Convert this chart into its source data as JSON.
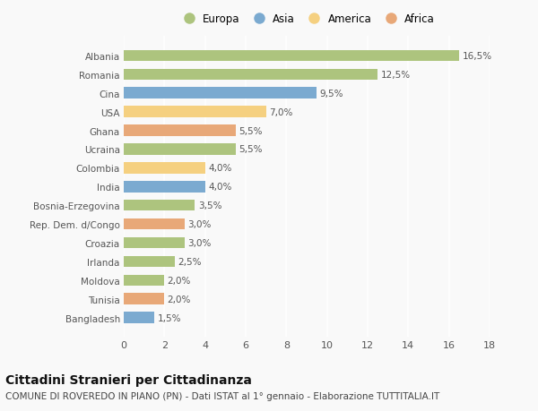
{
  "countries": [
    "Albania",
    "Romania",
    "Cina",
    "USA",
    "Ghana",
    "Ucraina",
    "Colombia",
    "India",
    "Bosnia-Erzegovina",
    "Rep. Dem. d/Congo",
    "Croazia",
    "Irlanda",
    "Moldova",
    "Tunisia",
    "Bangladesh"
  ],
  "values": [
    16.5,
    12.5,
    9.5,
    7.0,
    5.5,
    5.5,
    4.0,
    4.0,
    3.5,
    3.0,
    3.0,
    2.5,
    2.0,
    2.0,
    1.5
  ],
  "continents": [
    "Europa",
    "Europa",
    "Asia",
    "America",
    "Africa",
    "Europa",
    "America",
    "Asia",
    "Europa",
    "Africa",
    "Europa",
    "Europa",
    "Europa",
    "Africa",
    "Asia"
  ],
  "continent_colors": {
    "Europa": "#adc47e",
    "Asia": "#7baad0",
    "America": "#f5d080",
    "Africa": "#e8a878"
  },
  "legend_order": [
    "Europa",
    "Asia",
    "America",
    "Africa"
  ],
  "title": "Cittadini Stranieri per Cittadinanza",
  "subtitle": "COMUNE DI ROVEREDO IN PIANO (PN) - Dati ISTAT al 1° gennaio - Elaborazione TUTTITALIA.IT",
  "xlim": [
    0,
    18
  ],
  "xticks": [
    0,
    2,
    4,
    6,
    8,
    10,
    12,
    14,
    16,
    18
  ],
  "background_color": "#f9f9f9",
  "grid_color": "#ffffff",
  "bar_height": 0.6,
  "label_fontsize": 7.5,
  "title_fontsize": 10,
  "subtitle_fontsize": 7.5,
  "legend_fontsize": 8.5,
  "ytick_fontsize": 7.5,
  "xtick_fontsize": 8
}
